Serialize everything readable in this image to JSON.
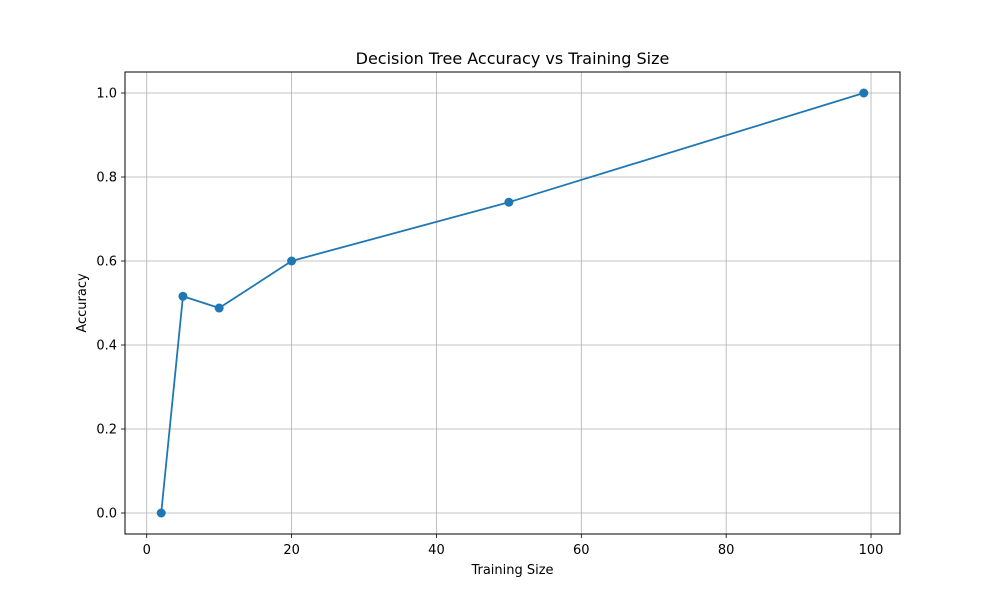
{
  "chart_data": {
    "type": "line",
    "title": "Decision Tree Accuracy vs Training Size",
    "xlabel": "Training Size",
    "ylabel": "Accuracy",
    "xlim": [
      -3,
      104
    ],
    "ylim": [
      -0.05,
      1.05
    ],
    "xticks": [
      0,
      20,
      40,
      60,
      80,
      100
    ],
    "yticks": [
      0.0,
      0.2,
      0.4,
      0.6,
      0.8,
      1.0
    ],
    "xtick_labels": [
      "0",
      "20",
      "40",
      "60",
      "80",
      "100"
    ],
    "ytick_labels": [
      "0.0",
      "0.2",
      "0.4",
      "0.6",
      "0.8",
      "1.0"
    ],
    "grid": true,
    "series": [
      {
        "color": "#1f77b4",
        "marker": "circle",
        "x": [
          2,
          5,
          10,
          20,
          50,
          99
        ],
        "y": [
          0.0,
          0.516,
          0.488,
          0.6,
          0.74,
          1.0
        ]
      }
    ]
  }
}
